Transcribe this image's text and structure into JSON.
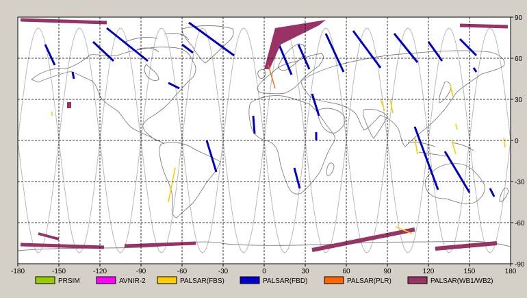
{
  "map": {
    "lon_range": [
      -180,
      180
    ],
    "lat_range": [
      -90,
      90
    ],
    "lon_ticks": [
      "-180",
      "-150",
      "-120",
      "-90",
      "-60",
      "-30",
      "0",
      "30",
      "60",
      "90",
      "120",
      "150",
      "180"
    ],
    "lat_ticks": [
      "90",
      "60",
      "30",
      "0",
      "-30",
      "-60",
      "-90"
    ],
    "grid": "dashed 30 degree graticule",
    "background": "#ffffff",
    "colors": {
      "coastline": "#808080",
      "orbit": "#c0c0c0",
      "PRSIM": "#99cc00",
      "AVNIR-2": "#ff00ff",
      "PALSAR(FBS)": "#ffcc00",
      "PALSAR(FBD)": "#0000cc",
      "PALSAR(PLR)": "#ff6600",
      "PALSAR(WB1/WB2)": "#993366"
    }
  },
  "legend": [
    {
      "label": "PRSIM",
      "color": "#99cc00"
    },
    {
      "label": "AVNIR-2",
      "color": "#ff00ff"
    },
    {
      "label": "PALSAR(FBS)",
      "color": "#ffcc00"
    },
    {
      "label": "PALSAR(FBD)",
      "color": "#0000cc"
    },
    {
      "label": "PALSAR(PLR)",
      "color": "#ff6600"
    },
    {
      "label": "PALSAR(WB1/WB2)",
      "color": "#993366"
    }
  ],
  "fbd_swaths": [
    {
      "lon": [
        -160,
        -153
      ],
      "lat": [
        70,
        55
      ]
    },
    {
      "lon": [
        -140,
        -139
      ],
      "lat": [
        50,
        45
      ]
    },
    {
      "lon": [
        -125,
        -110
      ],
      "lat": [
        72,
        58
      ]
    },
    {
      "lon": [
        -115,
        -85
      ],
      "lat": [
        82,
        58
      ]
    },
    {
      "lon": [
        -60,
        -52
      ],
      "lat": [
        70,
        64
      ]
    },
    {
      "lon": [
        -55,
        -22
      ],
      "lat": [
        86,
        62
      ]
    },
    {
      "lon": [
        -70,
        -62
      ],
      "lat": [
        42,
        38
      ]
    },
    {
      "lon": [
        -42,
        -35
      ],
      "lat": [
        0,
        -23
      ]
    },
    {
      "lon": [
        -8,
        -7
      ],
      "lat": [
        18,
        5
      ]
    },
    {
      "lon": [
        10,
        20
      ],
      "lat": [
        72,
        48
      ]
    },
    {
      "lon": [
        25,
        33
      ],
      "lat": [
        70,
        52
      ]
    },
    {
      "lon": [
        35,
        40
      ],
      "lat": [
        34,
        18
      ]
    },
    {
      "lon": [
        45,
        58
      ],
      "lat": [
        78,
        50
      ]
    },
    {
      "lon": [
        38,
        38
      ],
      "lat": [
        6,
        0
      ]
    },
    {
      "lon": [
        22,
        26
      ],
      "lat": [
        -20,
        -35
      ]
    },
    {
      "lon": [
        65,
        85
      ],
      "lat": [
        80,
        53
      ]
    },
    {
      "lon": [
        95,
        112
      ],
      "lat": [
        78,
        57
      ]
    },
    {
      "lon": [
        120,
        130
      ],
      "lat": [
        72,
        58
      ]
    },
    {
      "lon": [
        143,
        155
      ],
      "lat": [
        74,
        62
      ]
    },
    {
      "lon": [
        110,
        127
      ],
      "lat": [
        10,
        -36
      ]
    },
    {
      "lon": [
        132,
        150
      ],
      "lat": [
        -8,
        -38
      ]
    },
    {
      "lon": [
        165,
        168
      ],
      "lat": [
        -35,
        -41
      ]
    },
    {
      "lon": [
        153,
        155
      ],
      "lat": [
        53,
        50
      ]
    }
  ],
  "wb_swaths": [
    {
      "lon": [
        -178,
        -115
      ],
      "lat": [
        88,
        86
      ],
      "width": 5
    },
    {
      "lon": [
        -165,
        -150
      ],
      "lat": [
        -68,
        -72
      ],
      "width": 4
    },
    {
      "lon": [
        -178,
        -117
      ],
      "lat": [
        -76,
        -78
      ],
      "width": 5
    },
    {
      "lon": [
        -102,
        -50
      ],
      "lat": [
        -77,
        -75
      ],
      "width": 5
    },
    {
      "lon": [
        35,
        110
      ],
      "lat": [
        -80,
        -65
      ],
      "width": 6
    },
    {
      "lon": [
        125,
        170
      ],
      "lat": [
        -79,
        -75
      ],
      "width": 6
    },
    {
      "lon": [
        143,
        178
      ],
      "lat": [
        84,
        83
      ],
      "width": 5
    }
  ],
  "fbs_swaths": [
    {
      "lon": [
        -65,
        -70
      ],
      "lat": [
        -20,
        -45
      ]
    },
    {
      "lon": [
        -155,
        -155
      ],
      "lat": [
        21,
        18
      ]
    },
    {
      "lon": [
        85,
        88
      ],
      "lat": [
        30,
        22
      ]
    },
    {
      "lon": [
        92,
        94
      ],
      "lat": [
        30,
        20
      ]
    },
    {
      "lon": [
        110,
        112
      ],
      "lat": [
        2,
        -10
      ]
    },
    {
      "lon": [
        136,
        138
      ],
      "lat": [
        40,
        32
      ]
    },
    {
      "lon": [
        140,
        141
      ],
      "lat": [
        12,
        8
      ]
    },
    {
      "lon": [
        137,
        140
      ],
      "lat": [
        0,
        -10
      ]
    },
    {
      "lon": [
        175,
        176
      ],
      "lat": [
        2,
        -5
      ]
    },
    {
      "lon": [
        96,
        108
      ],
      "lat": [
        -63,
        -68
      ]
    }
  ]
}
